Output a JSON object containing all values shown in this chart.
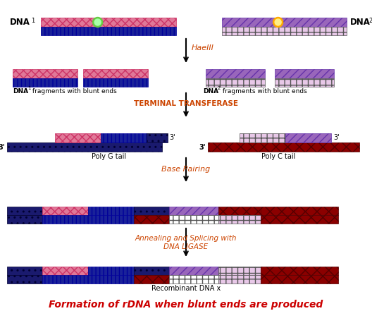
{
  "title": "Formation of rDNA when blunt ends are produced",
  "title_color": "#cc0000",
  "bg_color": "#ffffff",
  "label_haelll": "HaeIII",
  "label_tt": "TERMINAL TRANSFERASE",
  "label_bp": "Base Pairing",
  "label_lig": "Annealing and Splicing with\nDNA LIGASE",
  "label_rec": "Recombinant DNA x",
  "PINK": "#e07898",
  "BLUE": "#1a2299",
  "PURPLE": "#9966bb",
  "CHECKER": "#e8c8e8",
  "DRED": "#8b0000",
  "NAVY": "#1a1a6e",
  "WHITE": "#ffffff",
  "RED_LABEL": "#cc4400",
  "TITLE_COLOR": "#cc0000"
}
